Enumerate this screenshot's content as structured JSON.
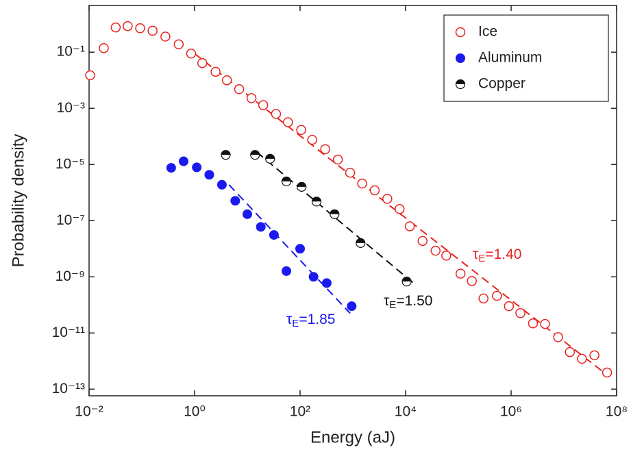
{
  "chart_data": {
    "type": "scatter",
    "x_label": "Energy (aJ)",
    "y_label": "Probability density",
    "xlog": true,
    "ylog": true,
    "xlim": [
      0.01,
      100000000
    ],
    "ylim": [
      5.8e-14,
      4.6
    ],
    "xticks": [
      {
        "value": 0.01,
        "label": "10⁻²"
      },
      {
        "value": 1,
        "label": "10⁰"
      },
      {
        "value": 100,
        "label": "10²"
      },
      {
        "value": 10000,
        "label": "10⁴"
      },
      {
        "value": 1000000,
        "label": "10⁶"
      },
      {
        "value": 100000000,
        "label": "10⁸"
      }
    ],
    "yticks": [
      {
        "value": 1e-13,
        "label": "10⁻¹³"
      },
      {
        "value": 1e-11,
        "label": "10⁻¹¹"
      },
      {
        "value": 1e-09,
        "label": "10⁻⁹"
      },
      {
        "value": 1e-07,
        "label": "10⁻⁷"
      },
      {
        "value": 1e-05,
        "label": "10⁻⁵"
      },
      {
        "value": 0.001,
        "label": "10⁻³"
      },
      {
        "value": 0.1,
        "label": "10⁻¹"
      }
    ],
    "legend": "upper right",
    "series": [
      {
        "name": "Ice",
        "color": "#e8231f",
        "marker": "open",
        "x": [
          0.0105,
          0.019,
          0.032,
          0.054,
          0.093,
          0.16,
          0.28,
          0.5,
          0.86,
          1.4,
          2.5,
          4.1,
          7.0,
          12,
          20,
          35,
          59,
          105,
          170,
          300,
          520,
          890,
          1500,
          2600,
          4500,
          7700,
          12000,
          21000,
          37000,
          59000,
          110000,
          180000,
          300000,
          540000,
          910000,
          1500000,
          2600000,
          4400000,
          7800000,
          13000000,
          22000000,
          38000000,
          66000000
        ],
        "values": [
          0.015,
          0.14,
          0.76,
          0.85,
          0.71,
          0.58,
          0.36,
          0.19,
          0.089,
          0.041,
          0.02,
          0.01,
          0.0048,
          0.0023,
          0.0013,
          0.00063,
          0.00032,
          0.00017,
          7.6e-05,
          3.5e-05,
          1.5e-05,
          5.1e-06,
          2.1e-06,
          1.2e-06,
          6e-07,
          2.6e-07,
          6.3e-08,
          1.9e-08,
          8.5e-09,
          5.7e-09,
          1.3e-09,
          7.1e-10,
          1.7e-10,
          2.1e-10,
          9e-11,
          5.1e-11,
          2.2e-11,
          2.1e-11,
          7.1e-12,
          2.1e-12,
          1.2e-12,
          1.6e-12,
          3.9e-13
        ]
      },
      {
        "name": "Aluminum",
        "color": "#1a1aee",
        "marker": "filled",
        "x": [
          0.36,
          0.62,
          1.1,
          1.9,
          3.3,
          5.9,
          10,
          18,
          32,
          100,
          55,
          180,
          320,
          950
        ],
        "values": [
          7.6e-06,
          1.3e-05,
          7.9e-06,
          4.3e-06,
          1.9e-06,
          5.1e-07,
          1.7e-07,
          6e-08,
          3.1e-08,
          1e-08,
          1.6e-09,
          1e-09,
          6e-10,
          9e-11
        ]
      },
      {
        "name": "Copper",
        "color": "#111111",
        "marker": "half",
        "x": [
          3.9,
          14,
          27,
          55,
          107,
          205,
          450,
          1400,
          10500
        ],
        "values": [
          2.2e-05,
          2.2e-05,
          1.6e-05,
          2.5e-06,
          1.6e-06,
          4.8e-07,
          1.7e-07,
          1.6e-08,
          6.8e-10
        ]
      }
    ],
    "fits": [
      {
        "color": "#e8231f",
        "x": [
          1,
          66000000
        ],
        "values": [
          0.089,
          3.2e-13
        ],
        "annotation": [
          "τ",
          "E",
          "=1.40"
        ]
      },
      {
        "color": "#1a1aee",
        "x": [
          4.5,
          890
        ],
        "values": [
          1.9e-06,
          5e-11
        ],
        "annotation": [
          "τ",
          "E",
          "=1.85"
        ]
      },
      {
        "color": "#111111",
        "x": [
          15,
          15000
        ],
        "values": [
          2.8e-05,
          5.4e-10
        ],
        "annotation": [
          "τ",
          "E",
          "=1.50"
        ]
      }
    ]
  }
}
